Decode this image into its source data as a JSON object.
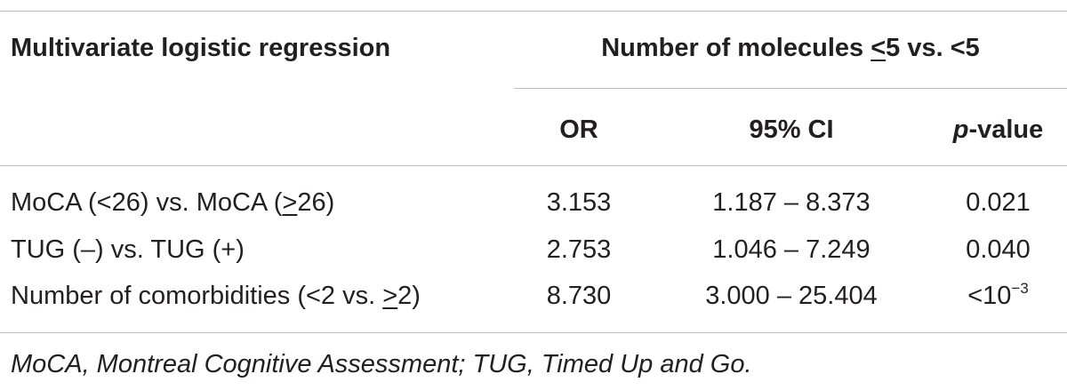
{
  "table": {
    "header": {
      "stub_label": "Multivariate logistic regression",
      "group_label_prefix": "Number of molecules ",
      "group_label_ineq": "<",
      "group_label_suffix": "5 vs. <5",
      "columns": {
        "or": "OR",
        "ci": "95% CI",
        "p_italic": "p",
        "p_rest": "-value"
      }
    },
    "rows": [
      {
        "label_prefix": "MoCA (<26) vs. MoCA (",
        "label_ineq": ">",
        "label_suffix": "26)",
        "or": "3.153",
        "ci": "1.187 – 8.373",
        "p_base": "0.021",
        "p_exp": ""
      },
      {
        "label_prefix": "TUG (–) vs. TUG (+)",
        "label_ineq": "",
        "label_suffix": "",
        "or": "2.753",
        "ci": "1.046 – 7.249",
        "p_base": "0.040",
        "p_exp": ""
      },
      {
        "label_prefix": "Number of comorbidities (<2 vs. ",
        "label_ineq": ">",
        "label_suffix": "2)",
        "or": "8.730",
        "ci": "3.000 – 25.404",
        "p_base": "<10",
        "p_exp": "−3"
      }
    ],
    "footnote": "MoCA, Montreal Cognitive Assessment; TUG, Timed Up and Go."
  }
}
